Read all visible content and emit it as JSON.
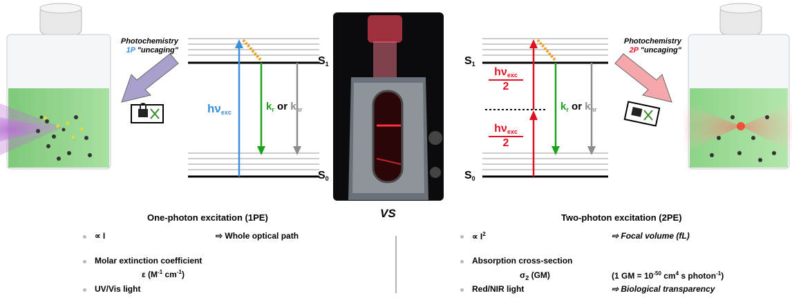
{
  "left": {
    "photochem_line1": "Photochemistry",
    "photochem_tag": "1P",
    "photochem_word": "\"uncaging\"",
    "hv": "hν",
    "hv_sub": "exc",
    "kr": "k",
    "kr_sub": "r",
    "or": "or",
    "knr": "k",
    "knr_sub": "nr",
    "s1": "S",
    "s1_sub": "1",
    "s0": "S",
    "s0_sub": "0",
    "heading": "One-photon excitation (1PE)",
    "b1_left": "∝ I",
    "b1_right": "⇨ Whole optical path",
    "b2": "Molar extinction coefficient",
    "b2_sub_main": "ε (M",
    "b2_sup1": "-1",
    "b2_mid": " cm",
    "b2_sup2": "-1",
    "b2_end": ")",
    "b3": "UV/Vis light"
  },
  "center": {
    "vs": "VS"
  },
  "right": {
    "photochem_line1": "Photochemistry",
    "photochem_tag": "2P",
    "photochem_word": "\"uncaging\"",
    "hv": "hν",
    "hv_sub": "exc",
    "two": "2",
    "kr": "k",
    "kr_sub": "r",
    "or": "or",
    "knr": "k",
    "knr_sub": "nr",
    "s1": "S",
    "s1_sub": "1",
    "s0": "S",
    "s0_sub": "0",
    "heading": "Two-photon excitation (2PE)",
    "b1_left": "∝ I",
    "b1_sup": "2",
    "b1_right": "⇨ Focal volume (fL)",
    "b2": "Absorption cross-section",
    "b2_sigma": "σ",
    "b2_sigma_sub": "2",
    "b2_gm": " (GM)",
    "b2_def_a": "(1 GM = 10",
    "b2_def_sup1": "-50",
    "b2_def_b": " cm",
    "b2_def_sup2": "4",
    "b2_def_c": " s photon",
    "b2_def_sup3": "-1",
    "b2_def_d": ")",
    "b3": "Red/NIR light",
    "b3_right": "⇨ Biological transparency"
  },
  "colors": {
    "blue": "#3a8fdc",
    "green": "#1aa31a",
    "gray": "#8c8c8c",
    "red": "#e01020",
    "orange": "#f0a020"
  }
}
